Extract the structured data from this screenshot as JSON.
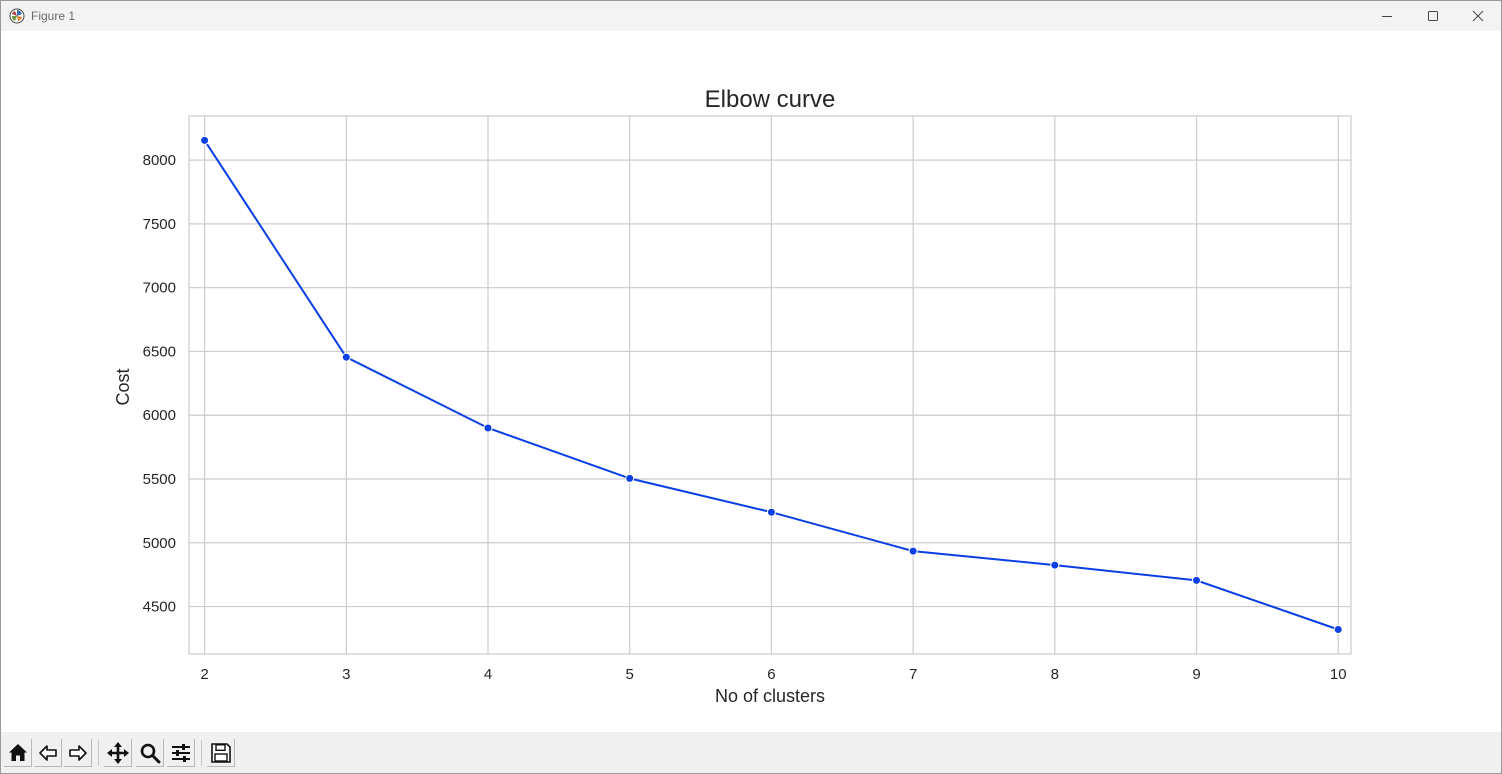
{
  "window": {
    "title": "Figure 1",
    "icons": {
      "app": "matplotlib-icon",
      "minimize": "minimize-icon",
      "maximize": "maximize-icon",
      "close": "close-icon"
    }
  },
  "toolbar": {
    "buttons": [
      {
        "name": "home-button",
        "icon": "home-icon"
      },
      {
        "name": "back-button",
        "icon": "arrow-left-icon"
      },
      {
        "name": "forward-button",
        "icon": "arrow-right-icon"
      },
      {
        "name": "pan-button",
        "icon": "move-icon"
      },
      {
        "name": "zoom-button",
        "icon": "magnifier-icon"
      },
      {
        "name": "configure-subplots-button",
        "icon": "sliders-icon"
      },
      {
        "name": "save-button",
        "icon": "floppy-disk-icon"
      }
    ]
  },
  "chart_data": {
    "type": "line",
    "title": "Elbow curve",
    "xlabel": "No of clusters",
    "ylabel": "Cost",
    "x": [
      2,
      3,
      4,
      5,
      6,
      7,
      8,
      9,
      10
    ],
    "series": [
      {
        "values": [
          8155,
          6455,
          5900,
          5505,
          5240,
          4935,
          4825,
          4705,
          4320
        ],
        "color": "#0a3fe6",
        "marker": "circle"
      }
    ],
    "xticks": [
      "2",
      "3",
      "4",
      "5",
      "6",
      "7",
      "8",
      "9",
      "10"
    ],
    "yticks": [
      "4500",
      "5000",
      "5500",
      "6000",
      "6500",
      "7000",
      "7500",
      "8000"
    ],
    "xlim": [
      1.89,
      10.09
    ],
    "ylim": [
      4128,
      8346
    ],
    "grid": true,
    "colors": {
      "grid": "#cccccc",
      "frame": "#cccccc",
      "text": "#262626"
    }
  }
}
